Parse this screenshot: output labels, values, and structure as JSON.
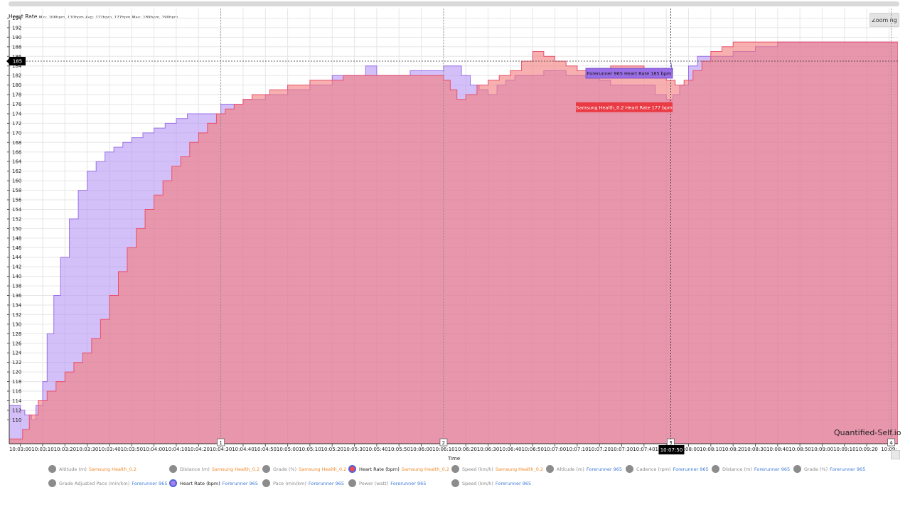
{
  "header": {
    "title": "Heart Rate",
    "min_label": "Min:",
    "min_value": "106bpm, 110bpm",
    "avg_label": "Avg:",
    "avg_value": "172bpm, 177bpm",
    "max_label": "Max:",
    "max_value": "189bpm, 190bpm"
  },
  "toolbar": {
    "zooming_label": "Zooming"
  },
  "brand": "Quantified-Self.io",
  "colors": {
    "samsung": "#f47a7a",
    "forerunner": "#b18cf2",
    "overlap": "#e098cf",
    "samsung_source_text": "#f08a2a",
    "forerunner_source_text": "#3d7ad6"
  },
  "chart_data": {
    "type": "area",
    "xlabel": "Time",
    "ylabel": "",
    "ylim": [
      105,
      196
    ],
    "y_ticks": [
      "110",
      "112",
      "114",
      "116",
      "118",
      "120",
      "122",
      "124",
      "126",
      "128",
      "130",
      "132",
      "134",
      "136",
      "138",
      "140",
      "142",
      "144",
      "146",
      "148",
      "150",
      "152",
      "154",
      "156",
      "158",
      "160",
      "162",
      "164",
      "166",
      "168",
      "170",
      "172",
      "174",
      "176",
      "178",
      "180",
      "182",
      "184",
      "186",
      "188",
      "190",
      "192",
      "194"
    ],
    "x_ticks": [
      "10:03:00",
      "10:03:10",
      "10:03:20",
      "10:03:30",
      "10:03:40",
      "10:03:50",
      "10:04:00",
      "10:04:10",
      "10:04:20",
      "10:04:30",
      "10:04:40",
      "10:04:50",
      "10:05:00",
      "10:05:10",
      "10:05:20",
      "10:05:30",
      "10:05:40",
      "10:05:50",
      "10:06:00",
      "10:06:10",
      "10:06:20",
      "10:06:30",
      "10:06:40",
      "10:06:50",
      "10:07:00",
      "10:07:10",
      "10:07:20",
      "10:07:30",
      "10:07:40",
      "10:07:50",
      "10:08:00",
      "10:08:10",
      "10:08:20",
      "10:08:30",
      "10:08:40",
      "10:08:50",
      "10:09:00",
      "10:09:10",
      "10:09:20",
      "10:09:"
    ],
    "laps": [
      {
        "label": "1",
        "time_s": 90
      },
      {
        "label": "2",
        "time_s": 190
      },
      {
        "label": "3",
        "time_s": 292
      },
      {
        "label": "4",
        "time_s": 391
      }
    ],
    "series": [
      {
        "name": "Samsung Health_0.2 Heart Rate",
        "x_seconds": [
          -5,
          1,
          4,
          8,
          12,
          16,
          20,
          24,
          28,
          32,
          36,
          40,
          44,
          48,
          52,
          56,
          60,
          64,
          68,
          72,
          76,
          80,
          84,
          88,
          92,
          96,
          100,
          104,
          108,
          112,
          116,
          120,
          125,
          130,
          135,
          140,
          145,
          150,
          155,
          160,
          165,
          170,
          175,
          180,
          185,
          190,
          193,
          196,
          200,
          205,
          210,
          215,
          220,
          225,
          230,
          235,
          240,
          245,
          250,
          255,
          260,
          265,
          270,
          275,
          280,
          285,
          290,
          294,
          298,
          302,
          306,
          310,
          315,
          320,
          325,
          330,
          340,
          350,
          360,
          370,
          380,
          390,
          394
        ],
        "values": [
          106,
          108,
          111,
          114,
          116,
          118,
          120,
          122,
          124,
          127,
          131,
          136,
          141,
          146,
          150,
          154,
          157,
          160,
          163,
          165,
          168,
          170,
          172,
          174,
          175,
          176,
          177,
          178,
          178,
          179,
          179,
          180,
          180,
          181,
          181,
          181,
          182,
          182,
          182,
          182,
          182,
          182,
          182,
          182,
          182,
          181,
          179,
          177,
          178,
          180,
          181,
          182,
          183,
          185,
          187,
          186,
          185,
          184,
          183,
          183,
          183,
          184,
          184,
          184,
          183,
          182,
          181,
          180,
          181,
          183,
          185,
          187,
          188,
          189,
          189,
          189,
          189,
          189,
          189,
          189,
          189,
          189,
          189
        ]
      },
      {
        "name": "Forerunner 965 Heart Rate",
        "x_seconds": [
          -5,
          0,
          2,
          5,
          7,
          10,
          12,
          15,
          18,
          22,
          26,
          30,
          34,
          38,
          42,
          46,
          50,
          55,
          60,
          65,
          70,
          75,
          80,
          85,
          90,
          95,
          100,
          110,
          120,
          130,
          140,
          150,
          155,
          160,
          165,
          170,
          175,
          180,
          185,
          190,
          194,
          198,
          202,
          206,
          210,
          214,
          218,
          222,
          226,
          230,
          235,
          240,
          245,
          250,
          255,
          260,
          265,
          270,
          275,
          280,
          285,
          290,
          293,
          296,
          300,
          304,
          310,
          315,
          320,
          330,
          340,
          350,
          360,
          370,
          380,
          390,
          394
        ],
        "values": [
          113,
          112,
          111,
          110,
          113,
          118,
          128,
          136,
          144,
          152,
          158,
          162,
          164,
          166,
          167,
          168,
          169,
          170,
          171,
          172,
          173,
          174,
          174,
          174,
          176,
          176,
          177,
          178,
          179,
          180,
          182,
          182,
          184,
          182,
          182,
          182,
          183,
          183,
          183,
          184,
          184,
          182,
          180,
          179,
          178,
          180,
          181,
          182,
          182,
          182,
          183,
          183,
          182,
          182,
          182,
          181,
          180,
          180,
          180,
          180,
          178,
          177,
          178,
          180,
          184,
          186,
          186,
          186,
          187,
          188,
          189,
          189,
          189,
          189,
          189,
          189,
          189
        ]
      }
    ],
    "annotations": [
      {
        "label": "Forerunner 965 Heart Rate 185 bpm",
        "series": "Forerunner 965 Heart Rate",
        "value": 185
      },
      {
        "label": "Samsung Health_0.2 Heart Rate 177 bpm",
        "series": "Samsung Health_0.2 Heart Rate",
        "value": 177
      }
    ],
    "crosshair": {
      "x_label": "10:07:50",
      "y_label": "185"
    },
    "grid": true
  },
  "legend": {
    "row1": [
      {
        "metric": "Altitude (m)",
        "source": "Samsung Health_0.2",
        "src": "sam",
        "active": false
      },
      {
        "metric": "Distance (m)",
        "source": "Samsung Health_0.2",
        "src": "sam",
        "active": false
      },
      {
        "metric": "Grade (%)",
        "source": "Samsung Health_0.2",
        "src": "sam",
        "active": false
      },
      {
        "metric": "Heart Rate (bpm)",
        "source": "Samsung Health_0.2",
        "src": "sam",
        "active": true
      },
      {
        "metric": "Speed (km/h)",
        "source": "Samsung Health_0.2",
        "src": "sam",
        "active": false
      },
      {
        "metric": "Altitude (m)",
        "source": "Forerunner 965",
        "src": "fr",
        "active": false
      },
      {
        "metric": "Cadence (rpm)",
        "source": "Forerunner 965",
        "src": "fr",
        "active": false
      },
      {
        "metric": "Distance (m)",
        "source": "Forerunner 965",
        "src": "fr",
        "active": false
      },
      {
        "metric": "Grade (%)",
        "source": "Forerunner 965",
        "src": "fr",
        "active": false
      }
    ],
    "row2": [
      {
        "metric": "Grade Adjusted Pace (min/km)",
        "source": "Forerunner 965",
        "src": "fr",
        "active": false
      },
      {
        "metric": "Heart Rate (bpm)",
        "source": "Forerunner 965",
        "src": "fr",
        "active": true
      },
      {
        "metric": "Pace (min/km)",
        "source": "Forerunner 965",
        "src": "fr",
        "active": false
      },
      {
        "metric": "Power (watt)",
        "source": "Forerunner 965",
        "src": "fr",
        "active": false
      },
      {
        "metric": "Speed (km/h)",
        "source": "Forerunner 965",
        "src": "fr",
        "active": false
      }
    ]
  }
}
